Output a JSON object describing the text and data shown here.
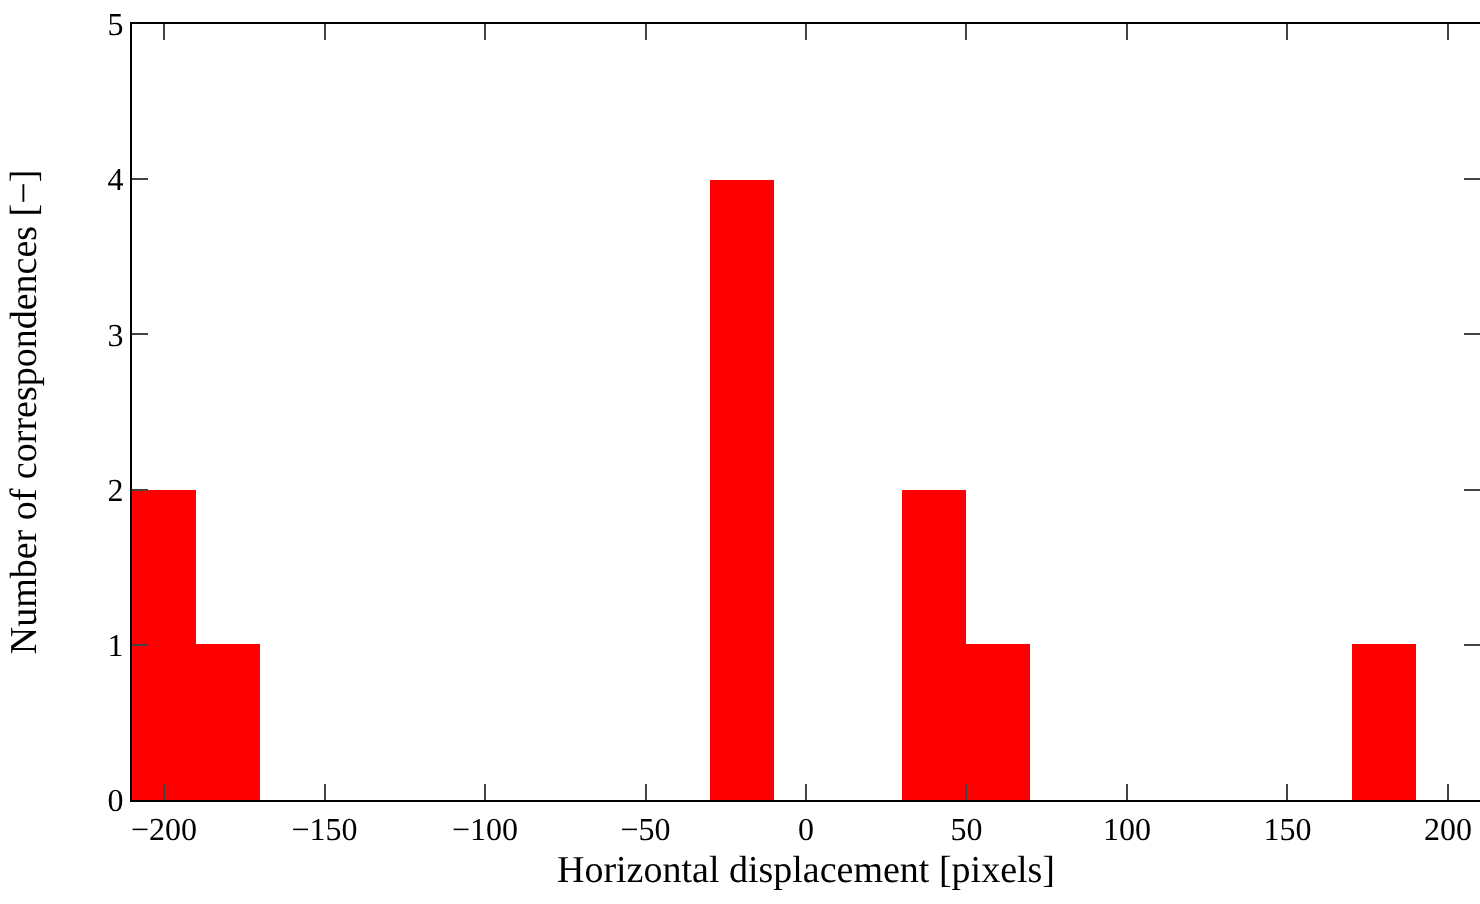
{
  "chart_data": {
    "type": "histogram",
    "xlabel": "Horizontal displacement [pixels]",
    "ylabel": "Number of correspondences [−]",
    "bins": [
      -210,
      -190,
      -170,
      -150,
      -130,
      -110,
      -90,
      -70,
      -50,
      -30,
      -10,
      10,
      30,
      50,
      70,
      90,
      110,
      130,
      150,
      170,
      190,
      210
    ],
    "values": [
      2,
      1,
      0,
      0,
      0,
      0,
      0,
      0,
      0,
      4,
      0,
      0,
      2,
      1,
      0,
      0,
      0,
      0,
      0,
      1,
      0
    ],
    "color": "#ff0000",
    "xlim": [
      -210,
      210
    ],
    "xticks": [
      {
        "value": -200,
        "label": "−200"
      },
      {
        "value": -150,
        "label": "−150"
      },
      {
        "value": -100,
        "label": "−100"
      },
      {
        "value": -50,
        "label": "−50"
      },
      0,
      50,
      100,
      150,
      200
    ],
    "ylim": [
      0,
      5
    ],
    "yticks": [
      0,
      1,
      2,
      3,
      4,
      5
    ],
    "grid": false
  }
}
